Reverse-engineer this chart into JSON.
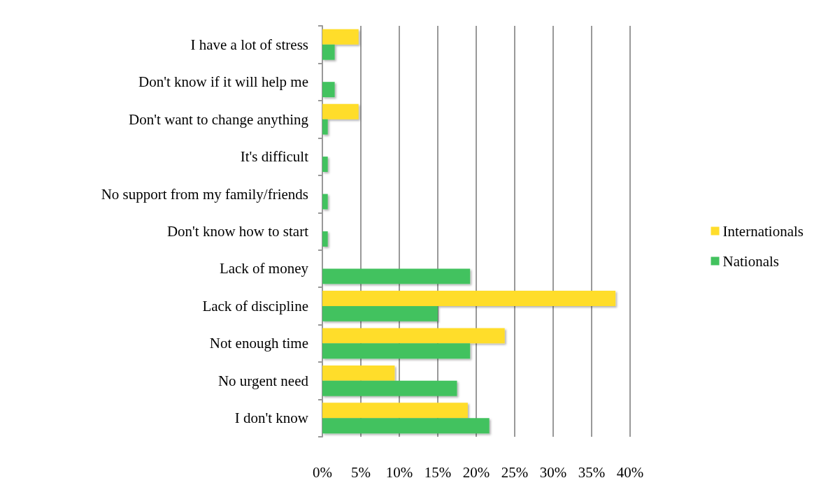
{
  "chart_data": {
    "type": "bar",
    "orientation": "horizontal",
    "categories": [
      "I have a lot of stress",
      "Don't know if it will help me",
      "Don't want to change anything",
      "It's difficult",
      "No support from my family/friends",
      "Don't know how to start",
      "Lack of money",
      "Lack of discipline",
      "Not enough time",
      "No urgent need",
      "I don't know"
    ],
    "series": [
      {
        "name": "Internationals",
        "color": "#ffdd2b",
        "values": [
          4.7,
          0,
          4.7,
          0,
          0,
          0,
          0,
          38.1,
          23.7,
          9.4,
          18.9
        ]
      },
      {
        "name": "Nationals",
        "color": "#42c25e",
        "values": [
          1.6,
          1.6,
          0.7,
          0.7,
          0.7,
          0.7,
          19.2,
          15.0,
          19.2,
          17.5,
          21.7
        ]
      }
    ],
    "xlim": [
      0,
      40
    ],
    "xticks": [
      {
        "value": 0,
        "label": "0%"
      },
      {
        "value": 5,
        "label": "5%"
      },
      {
        "value": 10,
        "label": "10%"
      },
      {
        "value": 15,
        "label": "15%"
      },
      {
        "value": 20,
        "label": "20%"
      },
      {
        "value": 25,
        "label": "25%"
      },
      {
        "value": 30,
        "label": "30%"
      },
      {
        "value": 35,
        "label": "35%"
      },
      {
        "value": 40,
        "label": "40%"
      }
    ],
    "grid": "x",
    "legend": "right"
  }
}
